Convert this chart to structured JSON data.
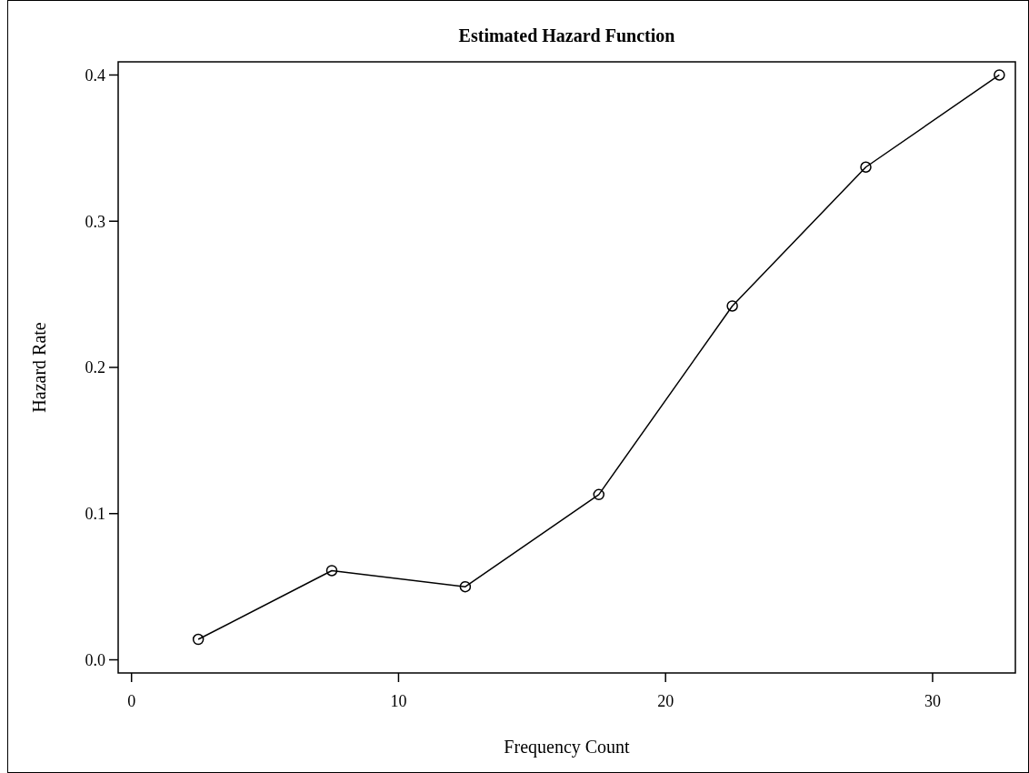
{
  "chart_data": {
    "type": "line",
    "title": "Estimated Hazard Function",
    "xlabel": "Frequency Count",
    "ylabel": "Hazard Rate",
    "x": [
      2.5,
      7.5,
      12.5,
      17.5,
      22.5,
      27.5,
      32.5
    ],
    "series": [
      {
        "color": "#000000",
        "values": [
          0.014,
          0.061,
          0.05,
          0.113,
          0.242,
          0.337,
          0.4
        ]
      }
    ],
    "xlim": [
      -0.5,
      33.1
    ],
    "ylim": [
      -0.009,
      0.409
    ],
    "xticks": [
      0,
      10,
      20,
      30
    ],
    "yticks": [
      {
        "value": 0,
        "label": "0.0"
      },
      {
        "value": 0.1,
        "label": "0.1"
      },
      {
        "value": 0.2,
        "label": "0.2"
      },
      {
        "value": 0.3,
        "label": "0.3"
      },
      {
        "value": 0.4,
        "label": "0.4"
      }
    ],
    "marker": "circle",
    "line_style": "solid",
    "grid": false
  }
}
